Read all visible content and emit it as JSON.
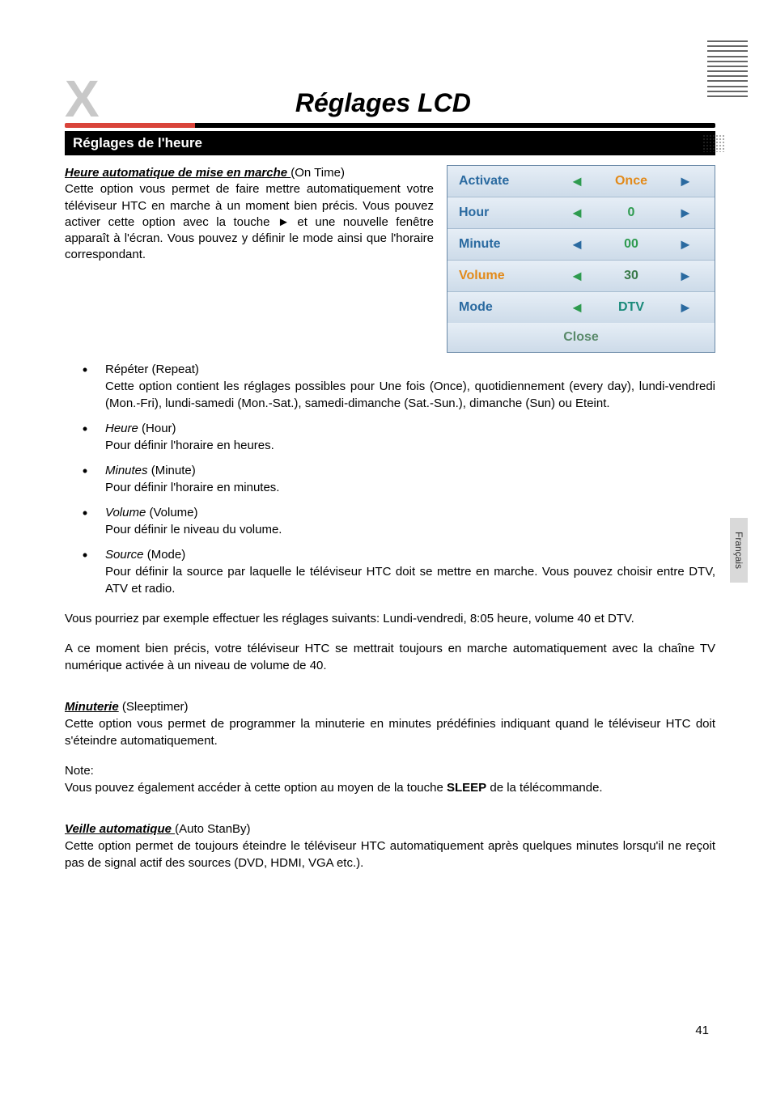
{
  "title": "Réglages LCD",
  "section_bar": "Réglages de l'heure",
  "intro": {
    "heading": "Heure automatique de mise en marche ",
    "heading_paren": "(On Time)",
    "text": "Cette option vous permet de faire mettre automatiquement votre téléviseur HTC en marche à un moment bien précis. Vous pouvez activer cette option avec la touche ► et une nouvelle fenêtre apparaît à l'écran. Vous pouvez y définir le mode ainsi que l'horaire correspondant."
  },
  "osd": {
    "rows": [
      {
        "label": "Activate",
        "value": "Once",
        "label_color": "c-blue",
        "val_color": "c-orange",
        "arrL": "arr-green",
        "arrR": "arr-blue"
      },
      {
        "label": "Hour",
        "value": "0",
        "label_color": "c-blue",
        "val_color": "c-green",
        "arrL": "arr-green",
        "arrR": "arr-blue"
      },
      {
        "label": "Minute",
        "value": "00",
        "label_color": "c-blue",
        "val_color": "c-green",
        "arrL": "arr-blue",
        "arrR": "arr-blue"
      },
      {
        "label": "Volume",
        "value": "30",
        "label_color": "c-orange",
        "val_color": "c-dgreen",
        "arrL": "arr-green",
        "arrR": "arr-blue"
      },
      {
        "label": "Mode",
        "value": "DTV",
        "label_color": "c-blue",
        "val_color": "c-teal",
        "arrL": "arr-green",
        "arrR": "arr-blue"
      }
    ],
    "close": "Close"
  },
  "bullets": [
    {
      "head": "Répéter (Repeat)",
      "head_italic": false,
      "body": "Cette option  contient les réglages possibles pour Une fois (Once), quotidiennement (every day), lundi-vendredi (Mon.-Fri), lundi-samedi (Mon.-Sat.), samedi-dimanche (Sat.-Sun.), dimanche (Sun) ou Eteint."
    },
    {
      "head": "Heure",
      "head_paren": " (Hour)",
      "head_italic": true,
      "body": "Pour définir l'horaire en heures."
    },
    {
      "head": "Minutes",
      "head_paren": " (Minute)",
      "head_italic": true,
      "body": "Pour définir l'horaire en minutes."
    },
    {
      "head": "Volume",
      "head_paren": " (Volume)",
      "head_italic": true,
      "body": "Pour définir le niveau du volume."
    },
    {
      "head": "Source",
      "head_paren": " (Mode)",
      "head_italic": true,
      "body": "Pour définir la source par laquelle le téléviseur HTC doit se mettre en marche. Vous pouvez choisir entre DTV, ATV et radio.",
      "body_full_width": true
    }
  ],
  "para1": "Vous pourriez par exemple effectuer les réglages suivants: Lundi-vendredi, 8:05 heure, volume 40 et DTV.",
  "para2": "A ce moment bien précis, votre téléviseur HTC se mettrait toujours en marche automatiquement avec la chaîne TV numérique activée à un niveau de volume de 40.",
  "sleeptimer": {
    "heading": "Minuterie",
    "heading_paren": " (Sleeptimer)",
    "text": "Cette option vous permet de programmer la minuterie en minutes prédéfinies indiquant quand le téléviseur HTC doit s'éteindre automatiquement."
  },
  "note_label": "Note:",
  "note_text_pre": "Vous pouvez également accéder à cette option au moyen de la touche ",
  "note_bold": "SLEEP",
  "note_text_post": " de la télécommande.",
  "standby": {
    "heading": "Veille automatique ",
    "heading_paren": "(Auto StanBy)",
    "text": "Cette option permet de toujours éteindre le téléviseur HTC automatiquement après quelques minutes lorsqu'il ne reçoit pas de signal actif des sources (DVD, HDMI, VGA etc.)."
  },
  "side_tab": "Français",
  "page_number": "41",
  "arrows": {
    "left": "◄",
    "right": "►"
  },
  "bullet_dot": "•"
}
